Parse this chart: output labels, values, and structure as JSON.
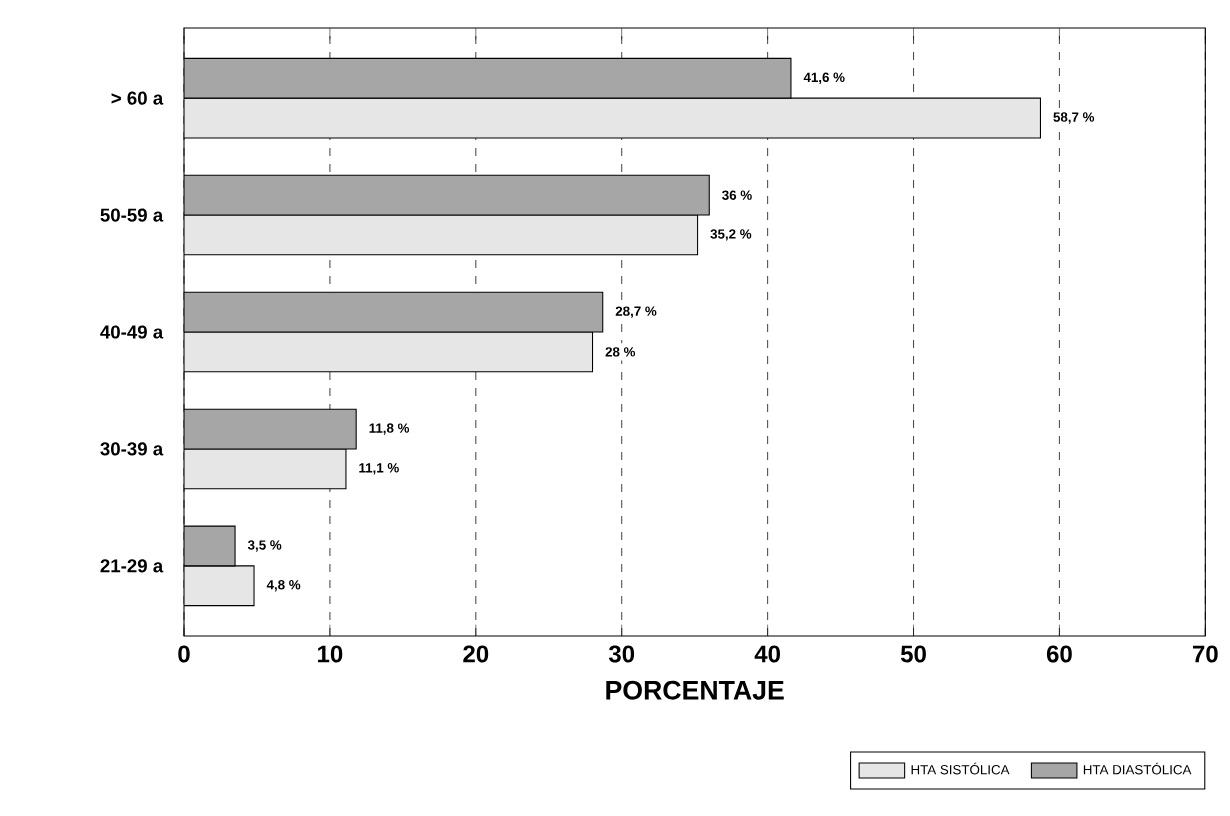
{
  "chart_data": {
    "type": "bar",
    "orientation": "horizontal",
    "xlabel": "PORCENTAJE",
    "categories": [
      "> 60 a",
      "50-59 a",
      "40-49 a",
      "30-39 a",
      "21-29 a"
    ],
    "series": [
      {
        "name": "HTA SISTÓLICA",
        "color": "#e6e6e6",
        "values": [
          58.7,
          35.2,
          28,
          11.1,
          4.8
        ],
        "value_labels": [
          "58,7 %",
          "35,2 %",
          "28 %",
          "11,1 %",
          "4,8 %"
        ]
      },
      {
        "name": "HTA DIASTÓLICA",
        "color": "#a6a6a6",
        "values": [
          41.6,
          36,
          28.7,
          11.8,
          3.5
        ],
        "value_labels": [
          "41,6 %",
          "36 %",
          "28,7 %",
          "11,8 %",
          "3,5 %"
        ]
      }
    ],
    "xlim": [
      0,
      70
    ],
    "xticks": [
      0,
      10,
      20,
      30,
      40,
      50,
      60,
      70
    ],
    "grid": "x",
    "legend": "bottom right"
  }
}
